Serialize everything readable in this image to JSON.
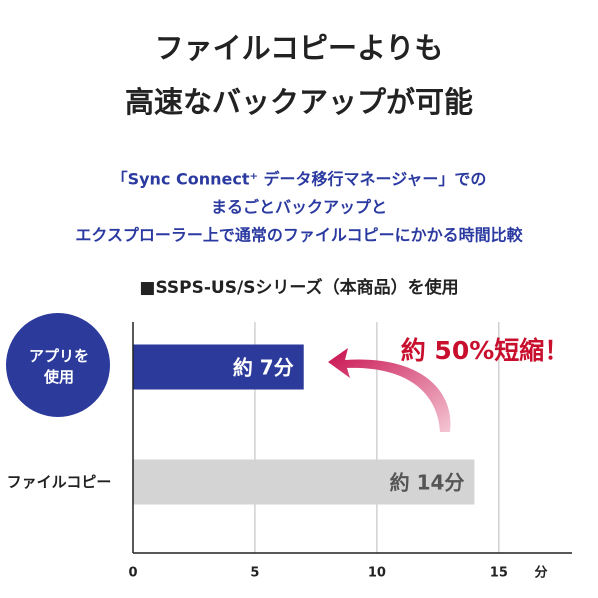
{
  "chart_data": {
    "type": "barh",
    "title": [
      "ファイルコピーよりも",
      "高速なバックアップが可能"
    ],
    "subtitle": [
      "「Sync Connect⁺ データ移行マネージャー」での",
      "まるごとバックアップと",
      "エクスプローラー上で通常のファイルコピーにかかる時間比較"
    ],
    "chart_title": "■SSPS-US/Sシリーズ（本商品）を使用",
    "categories": [
      "アプリを\n使用",
      "ファイルコピー"
    ],
    "values": [
      7,
      14
    ],
    "value_labels": [
      "約 7分",
      "約 14分"
    ],
    "colors": [
      "#2b3a9b",
      "#d4d4d4"
    ],
    "label_colors": [
      "#ffffff",
      "#555555"
    ],
    "xlim": [
      0,
      18
    ],
    "xticks": [
      0,
      5,
      10,
      15
    ],
    "x_unit": "分",
    "annotation": "約 50%短縮！",
    "grid": true
  }
}
